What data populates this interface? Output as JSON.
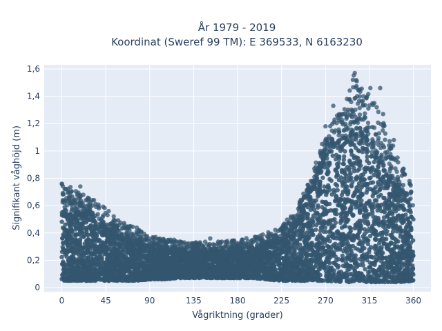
{
  "chart_data": {
    "type": "scatter",
    "title_line1": "År 1979 - 2019",
    "title_line2": "Koordinat (Sweref 99 TM): E 369533, N 6163230",
    "xlabel": "Vågriktning (grader)",
    "ylabel": "Signifikant våghöjd (m)",
    "xlim": [
      -18,
      378
    ],
    "ylim": [
      -0.03,
      1.63
    ],
    "x_ticks": [
      0,
      45,
      90,
      135,
      180,
      225,
      270,
      315,
      360
    ],
    "x_tick_labels": [
      "0",
      "45",
      "90",
      "135",
      "180",
      "225",
      "270",
      "315",
      "360"
    ],
    "y_ticks": [
      0,
      0.2,
      0.4,
      0.6,
      0.8,
      1.0,
      1.2,
      1.4,
      1.6
    ],
    "y_tick_labels": [
      "0",
      "0,2",
      "0,4",
      "0,6",
      "0,8",
      "1",
      "1,2",
      "1,4",
      "1,6"
    ],
    "grid": true,
    "legend": "none",
    "marker_color": "#34566f",
    "plot_bg": "#e5ecf6",
    "envelope": {
      "x": [
        0,
        15,
        30,
        45,
        60,
        75,
        90,
        105,
        120,
        135,
        150,
        165,
        180,
        195,
        210,
        225,
        240,
        255,
        270,
        285,
        300,
        315,
        330,
        345,
        360
      ],
      "y_min": [
        0.05,
        0.05,
        0.05,
        0.05,
        0.05,
        0.05,
        0.06,
        0.06,
        0.07,
        0.07,
        0.07,
        0.07,
        0.07,
        0.07,
        0.06,
        0.05,
        0.05,
        0.05,
        0.05,
        0.04,
        0.04,
        0.04,
        0.04,
        0.04,
        0.05
      ],
      "y_max": [
        0.76,
        0.72,
        0.65,
        0.58,
        0.48,
        0.45,
        0.37,
        0.36,
        0.34,
        0.33,
        0.34,
        0.34,
        0.35,
        0.37,
        0.4,
        0.46,
        0.58,
        0.8,
        1.13,
        1.32,
        1.57,
        1.46,
        1.21,
        0.95,
        0.78
      ],
      "core_max": [
        0.52,
        0.55,
        0.5,
        0.42,
        0.36,
        0.31,
        0.29,
        0.27,
        0.26,
        0.25,
        0.25,
        0.25,
        0.26,
        0.27,
        0.3,
        0.34,
        0.45,
        0.7,
        0.96,
        1.08,
        1.12,
        1.02,
        0.85,
        0.68,
        0.58
      ]
    },
    "outliers": [
      {
        "x": 0,
        "y": 0.76
      },
      {
        "x": 3,
        "y": 0.72
      },
      {
        "x": 19,
        "y": 0.74
      },
      {
        "x": 33,
        "y": 0.64
      },
      {
        "x": 48,
        "y": 0.56
      },
      {
        "x": 70,
        "y": 0.45
      },
      {
        "x": 96,
        "y": 0.37
      },
      {
        "x": 115,
        "y": 0.35
      },
      {
        "x": 152,
        "y": 0.36
      },
      {
        "x": 185,
        "y": 0.35
      },
      {
        "x": 214,
        "y": 0.38
      },
      {
        "x": 228,
        "y": 0.45
      },
      {
        "x": 244,
        "y": 0.58
      },
      {
        "x": 264,
        "y": 0.88
      },
      {
        "x": 270,
        "y": 1.18
      },
      {
        "x": 278,
        "y": 1.33
      },
      {
        "x": 284,
        "y": 1.26
      },
      {
        "x": 292,
        "y": 1.38
      },
      {
        "x": 298,
        "y": 1.52
      },
      {
        "x": 300,
        "y": 1.57
      },
      {
        "x": 302,
        "y": 1.51
      },
      {
        "x": 305,
        "y": 1.45
      },
      {
        "x": 309,
        "y": 1.4
      },
      {
        "x": 316,
        "y": 1.46
      },
      {
        "x": 320,
        "y": 1.35
      },
      {
        "x": 326,
        "y": 1.46
      },
      {
        "x": 329,
        "y": 1.27
      },
      {
        "x": 340,
        "y": 1.08
      },
      {
        "x": 350,
        "y": 0.87
      },
      {
        "x": 356,
        "y": 0.78
      }
    ]
  }
}
